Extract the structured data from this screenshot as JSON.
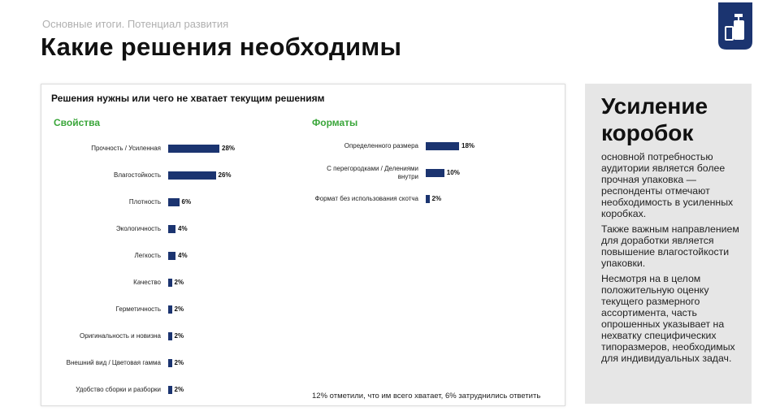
{
  "header": {
    "subtitle": "Основные итоги. Потенциал развития",
    "title": "Какие решения необходимы"
  },
  "card": {
    "title": "Решения нужны или чего не хватает текущим решениям",
    "footnote": "12% отметили, что им всего хватает, 6% затруднились ответить"
  },
  "chart_data": [
    {
      "type": "bar",
      "orientation": "horizontal",
      "title": "Свойства",
      "categories": [
        "Прочность / Усиленная",
        "Влагостойкость",
        "Плотность",
        "Экологичность",
        "Легкость",
        "Качество",
        "Герметичность",
        "Оригинальность и новизна",
        "Внешний вид / Цветовая гамма",
        "Удобство сборки и разборки"
      ],
      "values": [
        28,
        26,
        6,
        4,
        4,
        2,
        2,
        2,
        2,
        2
      ],
      "value_labels": [
        "28%",
        "26%",
        "6%",
        "4%",
        "4%",
        "2%",
        "2%",
        "2%",
        "2%",
        "2%"
      ],
      "color": "#1b3470"
    },
    {
      "type": "bar",
      "orientation": "horizontal",
      "title": "Форматы",
      "categories": [
        "Определенного размера",
        "С перегородками / Делениями внутри",
        "Формат без использования скотча"
      ],
      "values": [
        18,
        10,
        2
      ],
      "value_labels": [
        "18%",
        "10%",
        "2%"
      ],
      "color": "#1b3470"
    }
  ],
  "panel": {
    "title": "Усиление коробок",
    "paragraphs": [
      "основной потребностью аудитории является более прочная упаковка — респонденты отмечают необходимость в усиленных коробках.",
      "Также важным направлением для доработки является повышение влагостойкости упаковки.",
      "Несмотря на в целом положительную оценку текущего размерного ассортимента, часть опрошенных указывает на нехватку специфических типоразмеров, необходимых для индивидуальных задач."
    ]
  }
}
